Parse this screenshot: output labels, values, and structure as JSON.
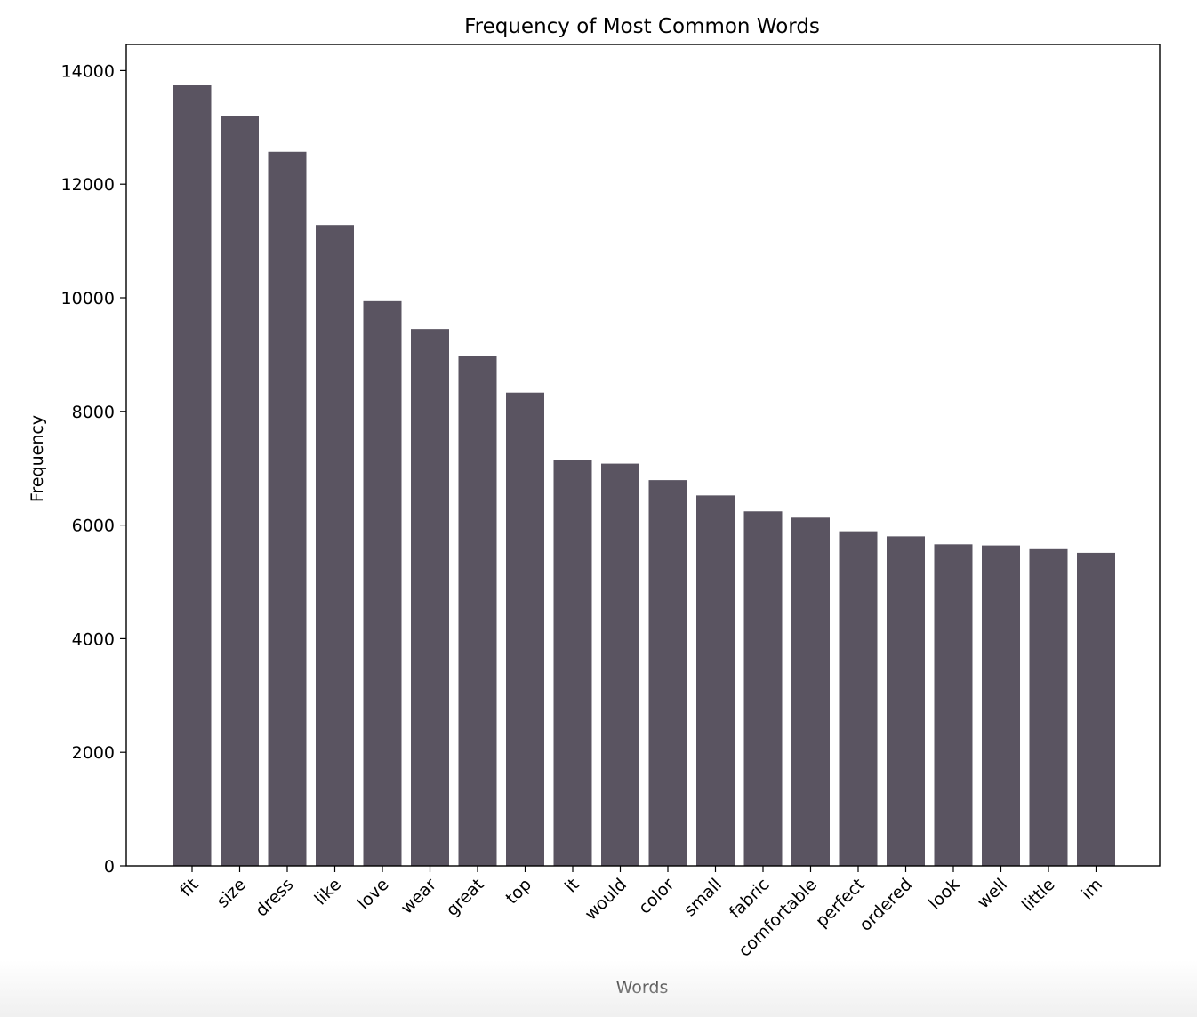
{
  "chart_data": {
    "type": "bar",
    "title": "Frequency of Most Common Words",
    "xlabel": "Words",
    "ylabel": "Frequency",
    "categories": [
      "fit",
      "size",
      "dress",
      "like",
      "love",
      "wear",
      "great",
      "top",
      "it",
      "would",
      "color",
      "small",
      "fabric",
      "comfortable",
      "perfect",
      "ordered",
      "look",
      "well",
      "little",
      "im"
    ],
    "values": [
      13740,
      13200,
      12570,
      11280,
      9940,
      9450,
      8980,
      8330,
      7150,
      7080,
      6790,
      6520,
      6240,
      6130,
      5890,
      5800,
      5660,
      5640,
      5590,
      5510
    ],
    "ylim": [
      0,
      14460
    ],
    "yticks": [
      0,
      2000,
      4000,
      6000,
      8000,
      10000,
      12000,
      14000
    ],
    "bar_color": "#5a5461",
    "grid": false,
    "legend": "none"
  }
}
